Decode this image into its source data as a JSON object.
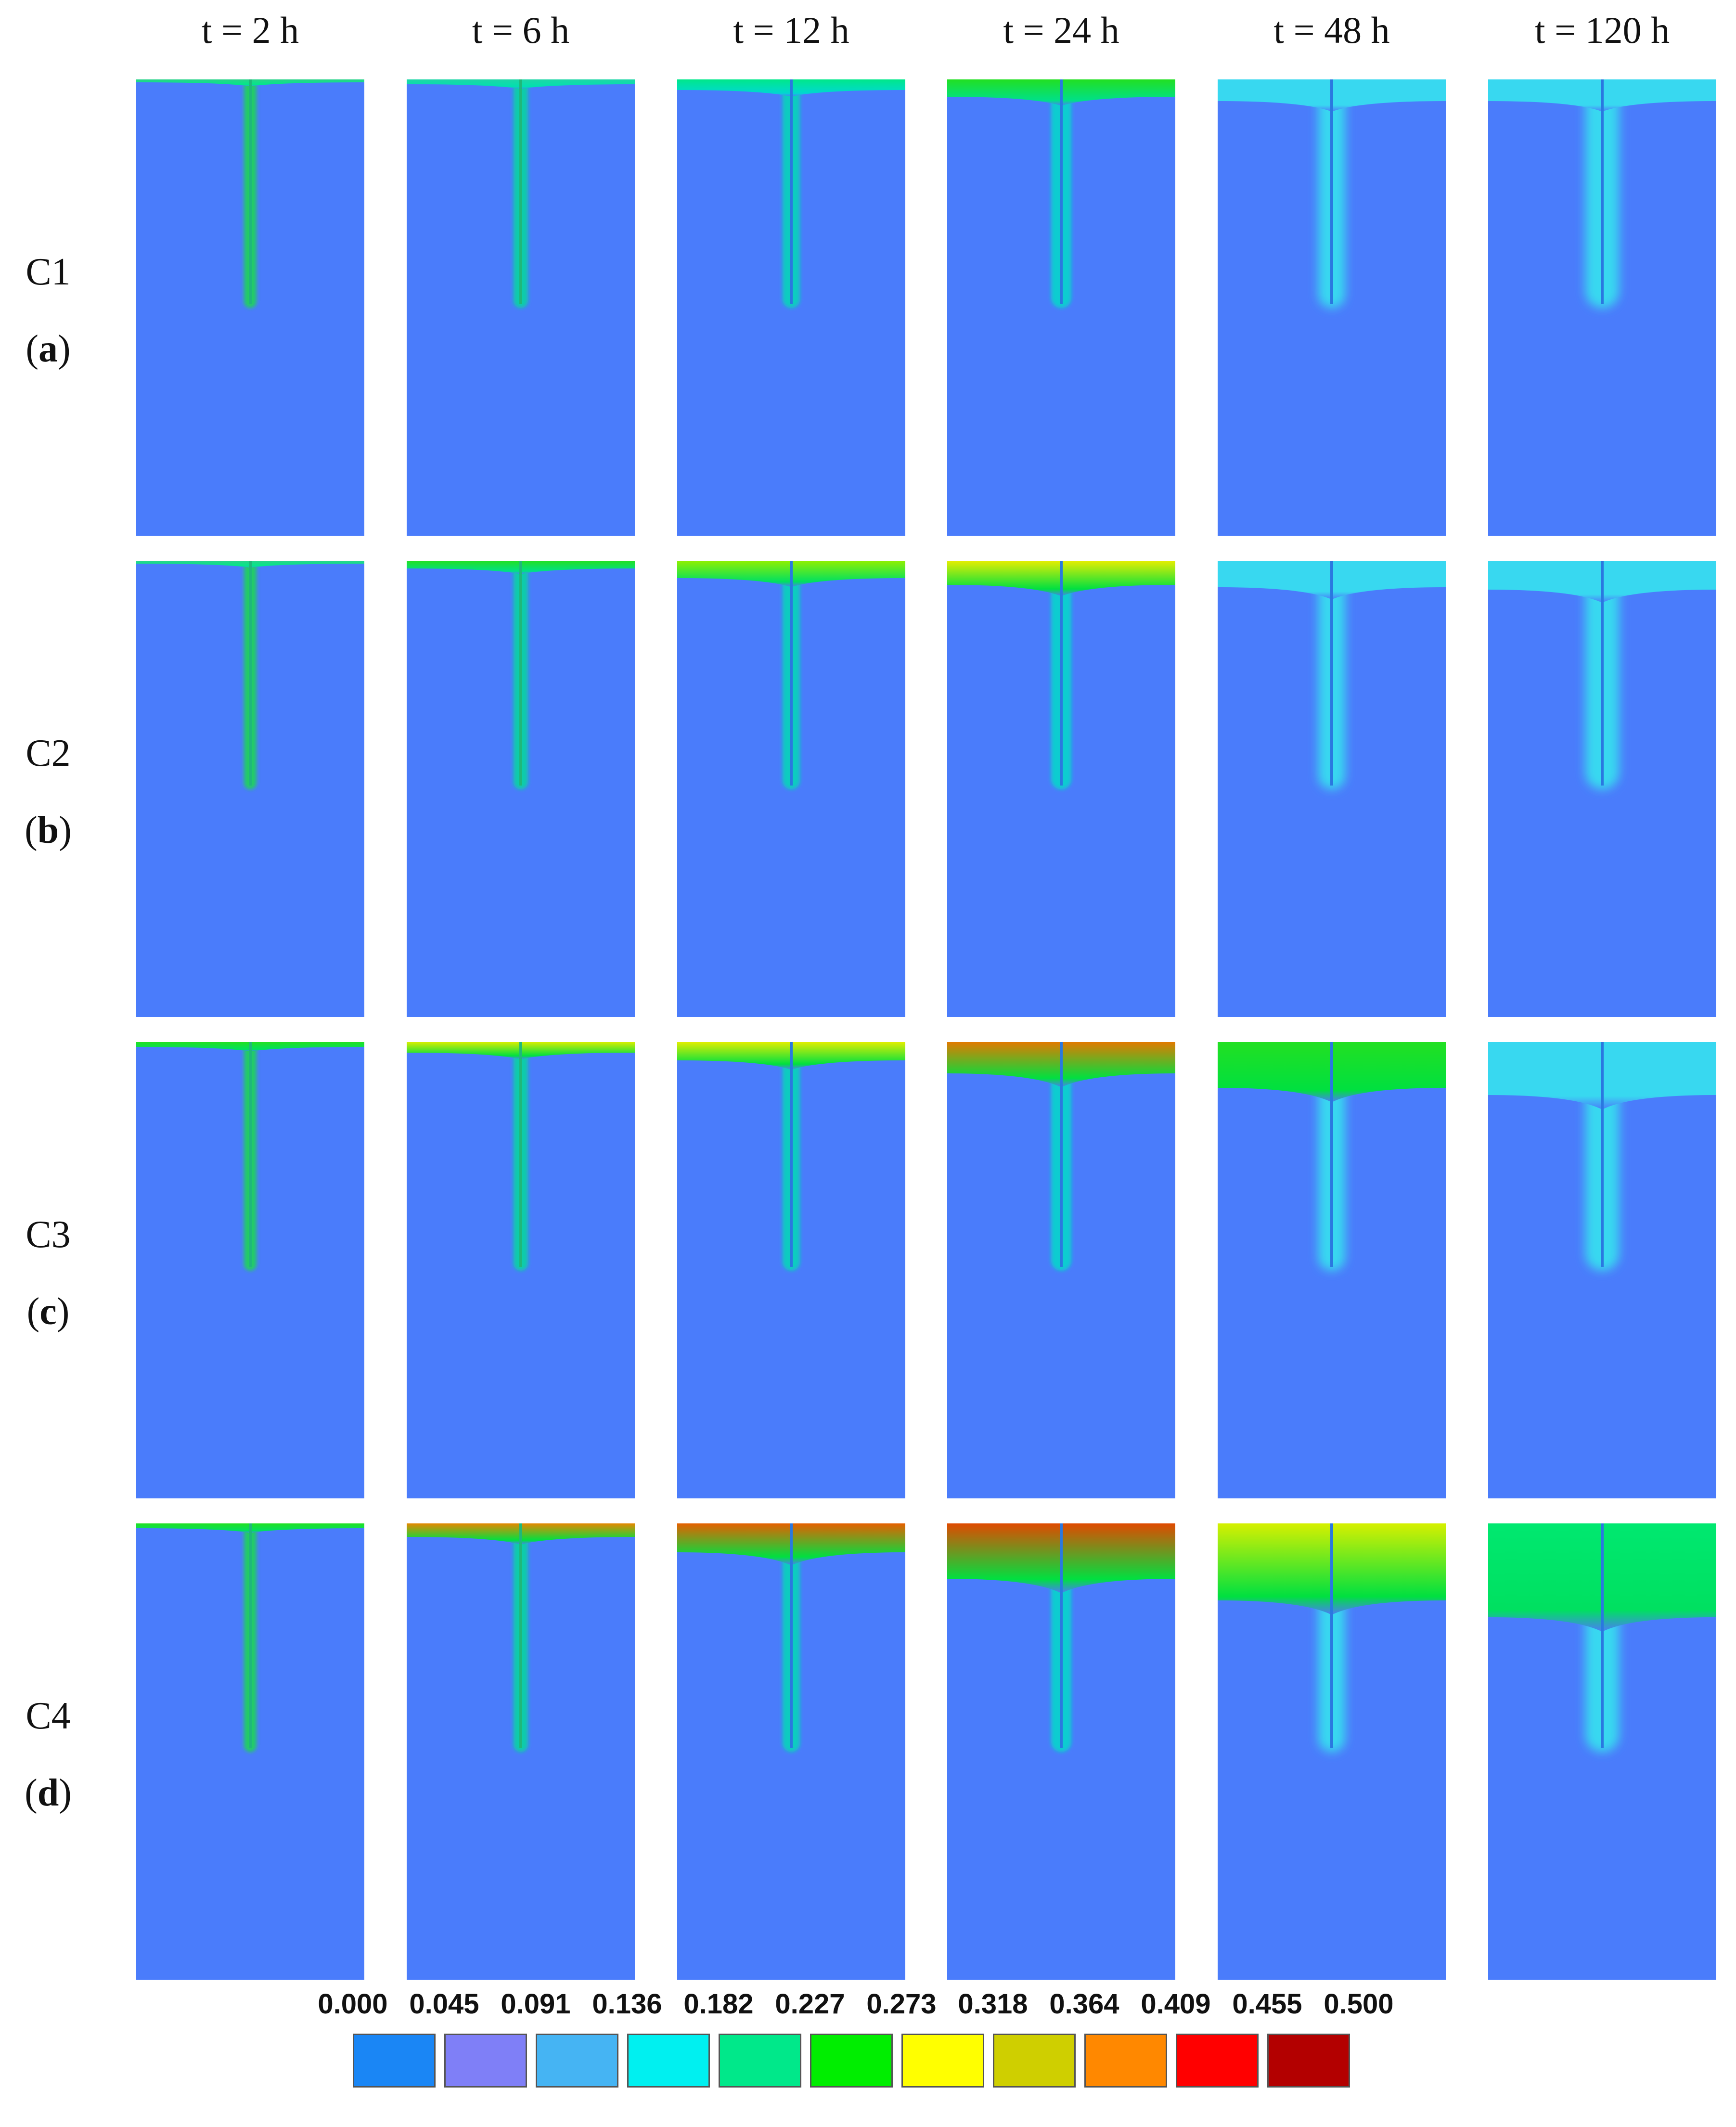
{
  "columns": [
    {
      "label": "t = 2 h"
    },
    {
      "label": "t = 6 h"
    },
    {
      "label": "t = 12 h"
    },
    {
      "label": "t = 24 h"
    },
    {
      "label": "t = 48 h"
    },
    {
      "label": "t = 120 h"
    }
  ],
  "rows": [
    {
      "name": "C1",
      "tag_open": "(",
      "tag": "a",
      "tag_close": ")"
    },
    {
      "name": "C2",
      "tag_open": "(",
      "tag": "b",
      "tag_close": ")"
    },
    {
      "name": "C3",
      "tag_open": "(",
      "tag": "c",
      "tag_close": ")"
    },
    {
      "name": "C4",
      "tag_open": "(",
      "tag": "d",
      "tag_close": ")"
    }
  ],
  "legend": {
    "values": [
      "0.000",
      "0.045",
      "0.091",
      "0.136",
      "0.182",
      "0.227",
      "0.273",
      "0.318",
      "0.364",
      "0.409",
      "0.455",
      "0.500"
    ],
    "colors": [
      "#1a86f5",
      "#7f7ff7",
      "#45b4f3",
      "#00f0f0",
      "#00e88a",
      "#00ee00",
      "#ffff00",
      "#cfcf00",
      "#ff8800",
      "#ff0000",
      "#b30000"
    ]
  },
  "colors": {
    "background": "#4a7cfb"
  }
}
